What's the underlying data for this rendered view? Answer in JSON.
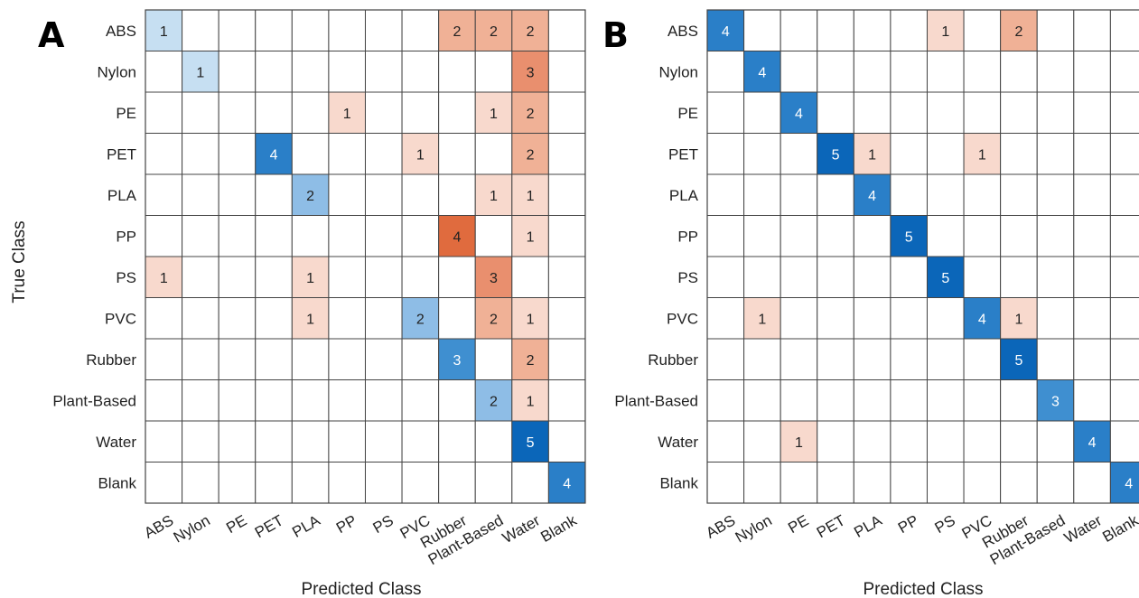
{
  "figure": {
    "x_axis_title": "Predicted Class",
    "y_axis_title": "True Class"
  },
  "chart_data": [
    {
      "type": "heatmap",
      "panel": "A",
      "xlabel": "Predicted Class",
      "ylabel": "True Class",
      "classes": [
        "ABS",
        "Nylon",
        "PE",
        "PET",
        "PLA",
        "PP",
        "PS",
        "PVC",
        "Rubber",
        "Plant-Based",
        "Water",
        "Blank"
      ],
      "matrix": [
        [
          1,
          0,
          0,
          0,
          0,
          0,
          0,
          0,
          2,
          2,
          2,
          0
        ],
        [
          0,
          1,
          0,
          0,
          0,
          0,
          0,
          0,
          0,
          0,
          3,
          0
        ],
        [
          0,
          0,
          0,
          0,
          0,
          1,
          0,
          0,
          0,
          1,
          2,
          0
        ],
        [
          0,
          0,
          0,
          4,
          0,
          0,
          0,
          1,
          0,
          0,
          2,
          0
        ],
        [
          0,
          0,
          0,
          0,
          2,
          0,
          0,
          0,
          0,
          1,
          1,
          0
        ],
        [
          0,
          0,
          0,
          0,
          0,
          0,
          0,
          0,
          4,
          0,
          1,
          0
        ],
        [
          1,
          0,
          0,
          0,
          1,
          0,
          0,
          0,
          0,
          3,
          0,
          0
        ],
        [
          0,
          0,
          0,
          0,
          1,
          0,
          0,
          2,
          0,
          2,
          1,
          0
        ],
        [
          0,
          0,
          0,
          0,
          0,
          0,
          0,
          0,
          3,
          0,
          2,
          0
        ],
        [
          0,
          0,
          0,
          0,
          0,
          0,
          0,
          0,
          0,
          2,
          1,
          0
        ],
        [
          0,
          0,
          0,
          0,
          0,
          0,
          0,
          0,
          0,
          0,
          5,
          0
        ],
        [
          0,
          0,
          0,
          0,
          0,
          0,
          0,
          0,
          0,
          0,
          0,
          4
        ]
      ]
    },
    {
      "type": "heatmap",
      "panel": "B",
      "xlabel": "Predicted Class",
      "ylabel": "",
      "classes": [
        "ABS",
        "Nylon",
        "PE",
        "PET",
        "PLA",
        "PP",
        "PS",
        "PVC",
        "Rubber",
        "Plant-Based",
        "Water",
        "Blank"
      ],
      "matrix": [
        [
          4,
          0,
          0,
          0,
          0,
          0,
          1,
          0,
          2,
          0,
          0,
          0
        ],
        [
          0,
          4,
          0,
          0,
          0,
          0,
          0,
          0,
          0,
          0,
          0,
          0
        ],
        [
          0,
          0,
          4,
          0,
          0,
          0,
          0,
          0,
          0,
          0,
          0,
          0
        ],
        [
          0,
          0,
          0,
          5,
          1,
          0,
          0,
          1,
          0,
          0,
          0,
          0
        ],
        [
          0,
          0,
          0,
          0,
          4,
          0,
          0,
          0,
          0,
          0,
          0,
          0
        ],
        [
          0,
          0,
          0,
          0,
          0,
          5,
          0,
          0,
          0,
          0,
          0,
          0
        ],
        [
          0,
          0,
          0,
          0,
          0,
          0,
          5,
          0,
          0,
          0,
          0,
          0
        ],
        [
          0,
          1,
          0,
          0,
          0,
          0,
          0,
          4,
          1,
          0,
          0,
          0
        ],
        [
          0,
          0,
          0,
          0,
          0,
          0,
          0,
          0,
          5,
          0,
          0,
          0
        ],
        [
          0,
          0,
          0,
          0,
          0,
          0,
          0,
          0,
          0,
          3,
          0,
          0
        ],
        [
          0,
          0,
          1,
          0,
          0,
          0,
          0,
          0,
          0,
          0,
          4,
          0
        ],
        [
          0,
          0,
          0,
          0,
          0,
          0,
          0,
          0,
          0,
          0,
          0,
          4
        ]
      ]
    }
  ],
  "colors": {
    "correct_scale": [
      "#c6dff2",
      "#8ebde6",
      "#3f8fd0",
      "#2a7fc8",
      "#0b66b9"
    ],
    "error_scale": [
      "#f8d9cd",
      "#f0b196",
      "#e98f6e",
      "#e06b3e"
    ],
    "grid": "#444444",
    "text_dark": "#222222",
    "text_light": "#ffffff"
  }
}
